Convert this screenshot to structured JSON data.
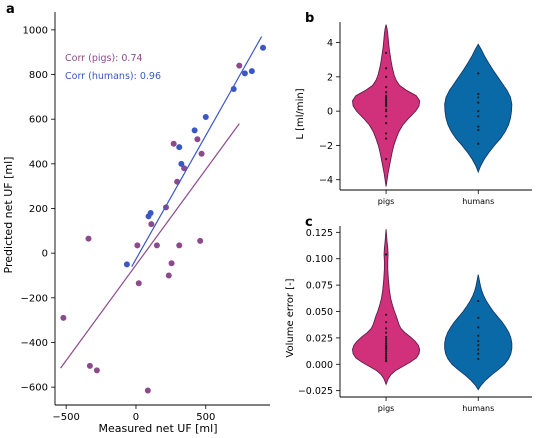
{
  "panels": {
    "a": "a",
    "b": "b",
    "c": "c"
  },
  "colors": {
    "pigs": "#8b4a8c",
    "humans": "#3a57c4",
    "pigs_violin": "#d1307a",
    "humans_violin": "#0a6aa8",
    "violin_edge": "#5a1f4a",
    "human_edge": "#123a6a"
  },
  "chart_data": [
    {
      "id": "a",
      "type": "scatter",
      "title": "",
      "xlabel": "Measured net UF [ml]",
      "ylabel": "Predicted net UF [ml]",
      "xlim": [
        -580,
        960
      ],
      "ylim": [
        -680,
        1080
      ],
      "xticks": [
        -500,
        0,
        500
      ],
      "yticks": [
        -600,
        -400,
        -200,
        0,
        200,
        400,
        600,
        800,
        1000
      ],
      "grid": false,
      "annotations": [
        {
          "text": "Corr (pigs): 0.74",
          "series": "pigs"
        },
        {
          "text": "Corr (humans): 0.96",
          "series": "humans"
        }
      ],
      "series": [
        {
          "name": "pigs",
          "points": [
            [
              -520,
              -290
            ],
            [
              -330,
              -505
            ],
            [
              -280,
              -525
            ],
            [
              -340,
              65
            ],
            [
              10,
              35
            ],
            [
              20,
              -135
            ],
            [
              85,
              -615
            ],
            [
              110,
              130
            ],
            [
              150,
              35
            ],
            [
              215,
              205
            ],
            [
              235,
              -100
            ],
            [
              255,
              -45
            ],
            [
              270,
              490
            ],
            [
              295,
              320
            ],
            [
              310,
              35
            ],
            [
              345,
              380
            ],
            [
              440,
              510
            ],
            [
              460,
              55
            ],
            [
              470,
              445
            ],
            [
              740,
              840
            ]
          ],
          "fit": [
            [
              -540,
              -515
            ],
            [
              740,
              580
            ]
          ]
        },
        {
          "name": "humans",
          "points": [
            [
              -65,
              -50
            ],
            [
              90,
              165
            ],
            [
              105,
              180
            ],
            [
              310,
              475
            ],
            [
              325,
              400
            ],
            [
              420,
              550
            ],
            [
              500,
              610
            ],
            [
              700,
              735
            ],
            [
              780,
              805
            ],
            [
              830,
              815
            ],
            [
              910,
              920
            ]
          ],
          "fit": [
            [
              -30,
              -60
            ],
            [
              900,
              970
            ]
          ]
        }
      ]
    },
    {
      "id": "b",
      "type": "violin",
      "title": "",
      "xlabel": "",
      "ylabel": "L [ml/min]",
      "categories": [
        "pigs",
        "humans"
      ],
      "ylim": [
        -4.6,
        5.2
      ],
      "yticks": [
        -4,
        -2,
        0,
        2,
        4
      ],
      "grid": false,
      "series": [
        {
          "name": "pigs",
          "profile": [
            [
              -4.4,
              0.0
            ],
            [
              -4.0,
              0.03
            ],
            [
              -3.6,
              0.06
            ],
            [
              -3.2,
              0.1
            ],
            [
              -2.8,
              0.14
            ],
            [
              -2.4,
              0.18
            ],
            [
              -2.0,
              0.23
            ],
            [
              -1.6,
              0.3
            ],
            [
              -1.2,
              0.38
            ],
            [
              -0.8,
              0.5
            ],
            [
              -0.4,
              0.68
            ],
            [
              0.0,
              0.88
            ],
            [
              0.3,
              0.98
            ],
            [
              0.6,
              1.0
            ],
            [
              0.9,
              0.9
            ],
            [
              1.2,
              0.62
            ],
            [
              1.5,
              0.4
            ],
            [
              1.8,
              0.3
            ],
            [
              2.1,
              0.24
            ],
            [
              2.5,
              0.19
            ],
            [
              2.9,
              0.15
            ],
            [
              3.3,
              0.12
            ],
            [
              3.7,
              0.09
            ],
            [
              4.1,
              0.07
            ],
            [
              4.5,
              0.05
            ],
            [
              4.8,
              0.03
            ],
            [
              5.05,
              0.0
            ]
          ],
          "points": [
            3.4,
            2.5,
            2.0,
            1.4,
            1.1,
            0.9,
            0.8,
            0.7,
            0.6,
            0.5,
            0.4,
            0.3,
            0.1,
            0.0,
            -0.3,
            -0.7,
            -1.3,
            -1.6,
            -2.8
          ]
        },
        {
          "name": "humans",
          "profile": [
            [
              -3.55,
              0.0
            ],
            [
              -3.2,
              0.07
            ],
            [
              -2.8,
              0.18
            ],
            [
              -2.4,
              0.32
            ],
            [
              -2.0,
              0.48
            ],
            [
              -1.6,
              0.66
            ],
            [
              -1.2,
              0.8
            ],
            [
              -0.8,
              0.9
            ],
            [
              -0.4,
              0.96
            ],
            [
              0.0,
              0.99
            ],
            [
              0.4,
              1.0
            ],
            [
              0.8,
              0.96
            ],
            [
              1.2,
              0.86
            ],
            [
              1.6,
              0.72
            ],
            [
              2.0,
              0.58
            ],
            [
              2.4,
              0.44
            ],
            [
              2.8,
              0.31
            ],
            [
              3.2,
              0.19
            ],
            [
              3.6,
              0.09
            ],
            [
              3.9,
              0.0
            ]
          ],
          "points": [
            2.2,
            1.0,
            0.8,
            0.5,
            0.0,
            -0.3,
            -0.9,
            -1.1,
            -1.9
          ]
        }
      ]
    },
    {
      "id": "c",
      "type": "violin",
      "title": "",
      "xlabel": "",
      "ylabel": "Volume error [-]",
      "categories": [
        "pigs",
        "humans"
      ],
      "ylim": [
        -0.031,
        0.131
      ],
      "yticks": [
        -0.025,
        0.0,
        0.025,
        0.05,
        0.075,
        0.1,
        0.125
      ],
      "ytick_labels": [
        "−0.025",
        "0.000",
        "0.025",
        "0.050",
        "0.075",
        "0.100",
        "0.125"
      ],
      "grid": false,
      "series": [
        {
          "name": "pigs",
          "profile": [
            [
              -0.019,
              0.0
            ],
            [
              -0.014,
              0.06
            ],
            [
              -0.01,
              0.14
            ],
            [
              -0.006,
              0.28
            ],
            [
              -0.002,
              0.5
            ],
            [
              0.002,
              0.72
            ],
            [
              0.006,
              0.9
            ],
            [
              0.01,
              0.98
            ],
            [
              0.014,
              1.0
            ],
            [
              0.018,
              0.96
            ],
            [
              0.022,
              0.86
            ],
            [
              0.026,
              0.72
            ],
            [
              0.03,
              0.56
            ],
            [
              0.034,
              0.44
            ],
            [
              0.038,
              0.38
            ],
            [
              0.042,
              0.34
            ],
            [
              0.046,
              0.3
            ],
            [
              0.05,
              0.25
            ],
            [
              0.056,
              0.19
            ],
            [
              0.062,
              0.14
            ],
            [
              0.07,
              0.1
            ],
            [
              0.08,
              0.07
            ],
            [
              0.09,
              0.05
            ],
            [
              0.098,
              0.05
            ],
            [
              0.104,
              0.06
            ],
            [
              0.11,
              0.05
            ],
            [
              0.116,
              0.03
            ],
            [
              0.122,
              0.015
            ],
            [
              0.128,
              0.0
            ]
          ],
          "points": [
            0.104,
            0.047,
            0.04,
            0.034,
            0.03,
            0.026,
            0.024,
            0.022,
            0.02,
            0.018,
            0.017,
            0.016,
            0.015,
            0.014,
            0.012,
            0.01,
            0.008,
            0.006,
            0.004,
            0.003
          ]
        },
        {
          "name": "humans",
          "profile": [
            [
              -0.024,
              0.0
            ],
            [
              -0.02,
              0.08
            ],
            [
              -0.015,
              0.22
            ],
            [
              -0.01,
              0.4
            ],
            [
              -0.005,
              0.6
            ],
            [
              0.0,
              0.78
            ],
            [
              0.005,
              0.9
            ],
            [
              0.01,
              0.97
            ],
            [
              0.015,
              1.0
            ],
            [
              0.02,
              1.0
            ],
            [
              0.025,
              0.97
            ],
            [
              0.03,
              0.91
            ],
            [
              0.035,
              0.82
            ],
            [
              0.04,
              0.71
            ],
            [
              0.045,
              0.58
            ],
            [
              0.05,
              0.45
            ],
            [
              0.055,
              0.34
            ],
            [
              0.06,
              0.24
            ],
            [
              0.065,
              0.16
            ],
            [
              0.07,
              0.1
            ],
            [
              0.075,
              0.06
            ],
            [
              0.08,
              0.03
            ],
            [
              0.085,
              0.0
            ]
          ],
          "points": [
            0.06,
            0.044,
            0.035,
            0.027,
            0.022,
            0.018,
            0.014,
            0.01,
            0.005
          ]
        }
      ]
    }
  ]
}
